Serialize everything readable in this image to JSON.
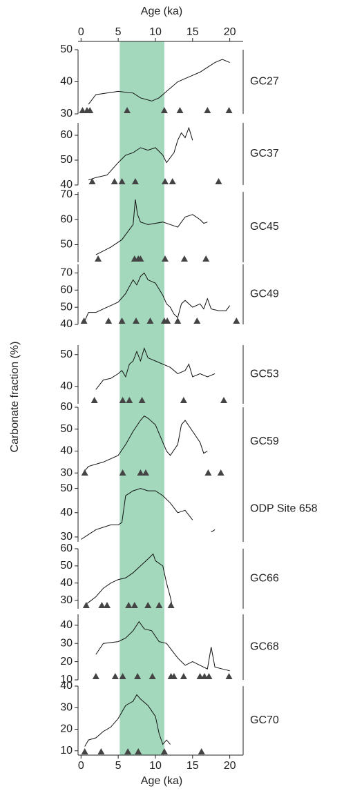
{
  "x_axis": {
    "label": "Age (ka)",
    "xlim": [
      -0.4,
      21.8
    ],
    "xticks": [
      0,
      5,
      10,
      15,
      20
    ]
  },
  "ylabel": "Carbonate fraction (%)",
  "band": [
    5.2,
    11.2
  ],
  "band_color": "#a3d8bc",
  "line_color": "#111111",
  "marker_color": "#444444",
  "chart_data": [
    {
      "type": "line",
      "label": "GC27",
      "ylim": [
        30,
        50
      ],
      "yticks": [
        30,
        40,
        50
      ],
      "x": [
        1,
        2,
        5,
        7,
        8,
        9.5,
        10.5,
        11.5,
        13,
        14,
        15,
        16,
        17,
        18,
        19,
        20
      ],
      "values": [
        33,
        36,
        37,
        36.5,
        35,
        34,
        35,
        37,
        40,
        41,
        42,
        43,
        44.5,
        46,
        47,
        46
      ],
      "markers": [
        0.2,
        0.8,
        1.2,
        6.2,
        11.2,
        13.3,
        17,
        19.9
      ]
    },
    {
      "type": "line",
      "label": "GC37",
      "ylim": [
        40,
        65
      ],
      "yticks": [
        40,
        50,
        60
      ],
      "x": [
        1,
        2,
        3.5,
        5,
        6,
        7,
        8,
        9,
        10,
        11,
        11.5,
        12,
        12.5,
        13,
        13.5,
        14,
        14.5,
        15
      ],
      "values": [
        42,
        43,
        44,
        49,
        52,
        53,
        55,
        54,
        55,
        52,
        49,
        51,
        53,
        58,
        61,
        59,
        63,
        58
      ],
      "markers": [
        1.5,
        4.5,
        5.5,
        7.3,
        11.3,
        12.3,
        18.5
      ]
    },
    {
      "type": "line",
      "label": "GC45",
      "ylim": [
        43,
        71
      ],
      "yticks": [
        50,
        60,
        70
      ],
      "x": [
        2,
        4,
        5.5,
        6.5,
        7,
        7.3,
        7.6,
        8,
        9,
        11,
        13,
        14,
        15,
        16,
        16.5,
        17
      ],
      "values": [
        46,
        49,
        52,
        56,
        58,
        68,
        62,
        59,
        58,
        59,
        57,
        61,
        62,
        60,
        58.5,
        59
      ],
      "markers": [
        2.3,
        7.2,
        7.7,
        8,
        11.3,
        13.9,
        16.8
      ]
    },
    {
      "type": "line",
      "label": "GC49",
      "ylim": [
        40,
        75
      ],
      "yticks": [
        40,
        50,
        60,
        70
      ],
      "x": [
        0.5,
        1,
        2,
        3,
        4,
        5,
        6,
        6.5,
        7,
        7.5,
        8,
        8.5,
        9,
        10,
        11,
        11.5,
        12,
        12.5,
        13,
        13.5,
        14,
        15,
        16,
        16.5,
        17,
        17.5,
        18.5,
        19.5,
        20
      ],
      "values": [
        42,
        47,
        47,
        49,
        51,
        53,
        58,
        62,
        66,
        63,
        68,
        70,
        66,
        64,
        57,
        52,
        50,
        46,
        44,
        52,
        54,
        50,
        52,
        49,
        55,
        49,
        48,
        48,
        51
      ],
      "markers": [
        0.4,
        3.7,
        5.5,
        7.4,
        9.3,
        11.2,
        11.6,
        13,
        15.6,
        20.9
      ]
    },
    {
      "type": "line",
      "label": "GC53",
      "ylim": [
        34.5,
        53
      ],
      "yticks": [
        40,
        50
      ],
      "x": [
        2,
        3,
        4,
        5,
        5.5,
        6,
        6.5,
        7,
        7.5,
        8,
        8.5,
        9,
        10,
        11,
        12,
        13,
        14,
        14.5,
        15,
        16,
        17,
        18
      ],
      "values": [
        39,
        42,
        42.5,
        44,
        45,
        43,
        47,
        48,
        51,
        48,
        52,
        49,
        48,
        47,
        46,
        44,
        45,
        47,
        43,
        44,
        43,
        44
      ],
      "markers": [
        1.8,
        5.6,
        6.5,
        8.2,
        13.8,
        19.2
      ]
    },
    {
      "type": "line",
      "label": "GC59",
      "ylim": [
        28.5,
        60
      ],
      "yticks": [
        30,
        40,
        50,
        60
      ],
      "x": [
        0.5,
        1,
        3,
        5,
        6,
        7,
        8,
        8.5,
        9,
        10,
        11,
        11.5,
        12,
        13,
        13.5,
        14,
        15,
        16,
        16.5,
        17
      ],
      "values": [
        31,
        33,
        35,
        38,
        43,
        49,
        54,
        56,
        55,
        52,
        44,
        40,
        38,
        43,
        52,
        54,
        49,
        44,
        39,
        40
      ],
      "markers": [
        0.5,
        5.6,
        8,
        8.7,
        17.1,
        18.8
      ]
    },
    {
      "type": "line",
      "label": "ODP Site 658",
      "ylim": [
        28,
        55
      ],
      "yticks": [
        30,
        40,
        50
      ],
      "x": [
        0,
        1,
        2,
        3,
        4,
        5,
        5.5,
        6,
        7,
        8,
        9,
        10,
        11,
        12,
        13,
        14,
        15,
        16,
        17.5,
        18
      ],
      "values": [
        29,
        31,
        33,
        34,
        35,
        35,
        36,
        47,
        49,
        50,
        49,
        49,
        47,
        44,
        40,
        41,
        37,
        null,
        32,
        33
      ],
      "markers": []
    },
    {
      "type": "line",
      "label": "GC66",
      "ylim": [
        25,
        60
      ],
      "yticks": [
        30,
        40,
        50,
        60
      ],
      "x": [
        0.5,
        2,
        3,
        4,
        5,
        6,
        7,
        8,
        9,
        9.7,
        10,
        11,
        11.5,
        12,
        12.2
      ],
      "values": [
        27,
        32,
        37,
        40,
        42,
        43,
        46,
        50,
        54,
        57,
        53,
        50,
        40,
        32,
        28
      ],
      "markers": [
        0.7,
        2.8,
        3.5,
        6.4,
        7.2,
        9,
        10.5,
        12.1
      ]
    },
    {
      "type": "line",
      "label": "GC68",
      "ylim": [
        10,
        46
      ],
      "yticks": [
        10,
        20,
        30,
        40
      ],
      "x": [
        2,
        3,
        5,
        6,
        7,
        7.8,
        8.5,
        9.5,
        10.5,
        11.5,
        13,
        14,
        15,
        16,
        17,
        17.5,
        18,
        19,
        20
      ],
      "values": [
        24,
        30,
        31,
        33,
        37,
        42,
        38,
        37,
        31,
        30,
        22,
        18,
        20,
        18,
        16,
        28,
        17,
        16,
        15
      ],
      "markers": [
        2,
        4.6,
        5.6,
        7.6,
        9.6,
        12.1,
        12.5,
        13.8,
        16,
        16.6,
        17.2,
        19.9
      ]
    },
    {
      "type": "line",
      "label": "GC70",
      "ylim": [
        8,
        40
      ],
      "yticks": [
        10,
        20,
        30,
        40
      ],
      "x": [
        0.5,
        1,
        2,
        3,
        4,
        5,
        6,
        7,
        7.5,
        8,
        9,
        10,
        10.5,
        11,
        11.5,
        12
      ],
      "values": [
        12,
        15,
        16,
        19,
        21,
        25,
        31,
        33,
        36,
        34,
        31,
        26,
        18,
        13,
        15,
        13
      ],
      "markers": [
        0.5,
        2.7,
        6.3,
        7.7,
        11.2,
        16.2
      ]
    }
  ]
}
